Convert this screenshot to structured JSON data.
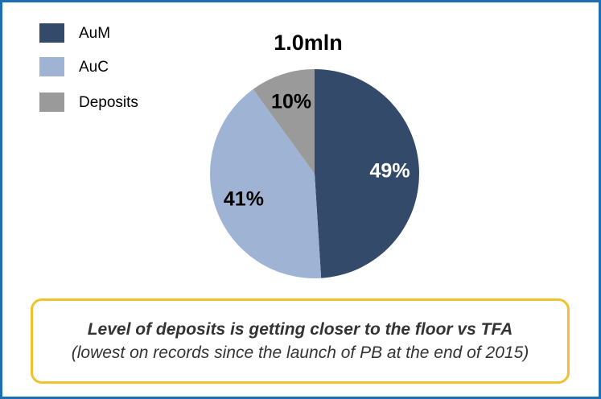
{
  "chart_data": {
    "type": "pie",
    "title": "1.0mln",
    "categories": [
      "AuM",
      "AuC",
      "Deposits"
    ],
    "values": [
      49,
      41,
      10
    ],
    "value_labels": [
      "49%",
      "41%",
      "10%"
    ],
    "colors": [
      "#344a6b",
      "#9fb3d4",
      "#9a9a9a"
    ],
    "label_colors": [
      "#ffffff",
      "#000000",
      "#000000"
    ],
    "legend": "top-left",
    "callout": {
      "emphasis": "Level of deposits is getting closer to the floor vs TFA",
      "detail": "(lowest on records since the launch of PB at the end of 2015)"
    }
  }
}
